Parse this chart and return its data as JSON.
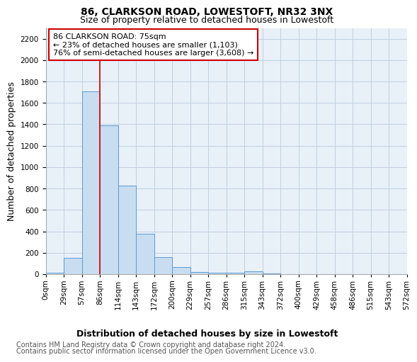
{
  "title": "86, CLARKSON ROAD, LOWESTOFT, NR32 3NX",
  "subtitle": "Size of property relative to detached houses in Lowestoft",
  "xlabel": "Distribution of detached houses by size in Lowestoft",
  "ylabel": "Number of detached properties",
  "bar_values": [
    10,
    155,
    1710,
    1390,
    830,
    380,
    160,
    65,
    20,
    15,
    15,
    25,
    5,
    0,
    0,
    0,
    0,
    0,
    0,
    0
  ],
  "bar_color": "#c8ddf0",
  "bar_edge_color": "#5b9bd5",
  "x_labels": [
    "0sqm",
    "29sqm",
    "57sqm",
    "86sqm",
    "114sqm",
    "143sqm",
    "172sqm",
    "200sqm",
    "229sqm",
    "257sqm",
    "286sqm",
    "315sqm",
    "343sqm",
    "372sqm",
    "400sqm",
    "429sqm",
    "458sqm",
    "486sqm",
    "515sqm",
    "543sqm",
    "572sqm"
  ],
  "ylim": [
    0,
    2300
  ],
  "yticks": [
    0,
    200,
    400,
    600,
    800,
    1000,
    1200,
    1400,
    1600,
    1800,
    2000,
    2200
  ],
  "vline_x": 3,
  "vline_color": "#cc0000",
  "annotation_text": "86 CLARKSON ROAD: 75sqm\n← 23% of detached houses are smaller (1,103)\n76% of semi-detached houses are larger (3,608) →",
  "annotation_box_color": "#ffffff",
  "annotation_box_edge_color": "#cc0000",
  "footer_line1": "Contains HM Land Registry data © Crown copyright and database right 2024.",
  "footer_line2": "Contains public sector information licensed under the Open Government Licence v3.0.",
  "background_color": "#ffffff",
  "plot_bg_color": "#e8f0f8",
  "grid_color": "#c0d0e0",
  "title_fontsize": 10,
  "subtitle_fontsize": 9,
  "axis_label_fontsize": 9,
  "tick_fontsize": 7.5,
  "footer_fontsize": 7,
  "annotation_fontsize": 8
}
